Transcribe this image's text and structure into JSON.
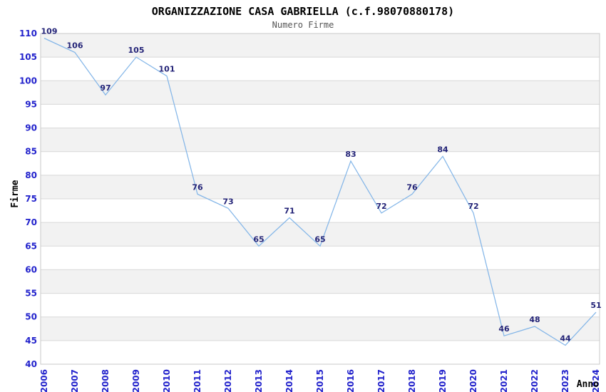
{
  "chart_data": {
    "type": "line",
    "title": "ORGANIZZAZIONE CASA GABRIELLA (c.f.98070880178)",
    "subtitle": "Numero Firme",
    "xlabel": "Anno",
    "ylabel": "Firme",
    "categories": [
      "2006",
      "2007",
      "2008",
      "2009",
      "2010",
      "2011",
      "2012",
      "2013",
      "2014",
      "2015",
      "2016",
      "2017",
      "2018",
      "2019",
      "2020",
      "2021",
      "2022",
      "2023",
      "2024"
    ],
    "series": [
      {
        "name": "Numero Firme",
        "values": [
          109,
          106,
          97,
          105,
          101,
          76,
          73,
          65,
          71,
          65,
          83,
          72,
          76,
          84,
          72,
          46,
          48,
          44,
          51
        ]
      }
    ],
    "ylim": [
      40,
      110
    ],
    "ytick_step": 5,
    "grid": "horizontal-bands-alternating",
    "legend": "none",
    "data_labels": "shown-above-points",
    "x_tick_rotation": -90,
    "colors": {
      "line": "#84b6e8",
      "band": "#f2f2f2",
      "grid": "#d8d8d8",
      "border": "#c9c9c9",
      "tick_label": "#2222cc",
      "data_label": "#232377",
      "title": "#000000",
      "subtitle": "#555555"
    }
  }
}
